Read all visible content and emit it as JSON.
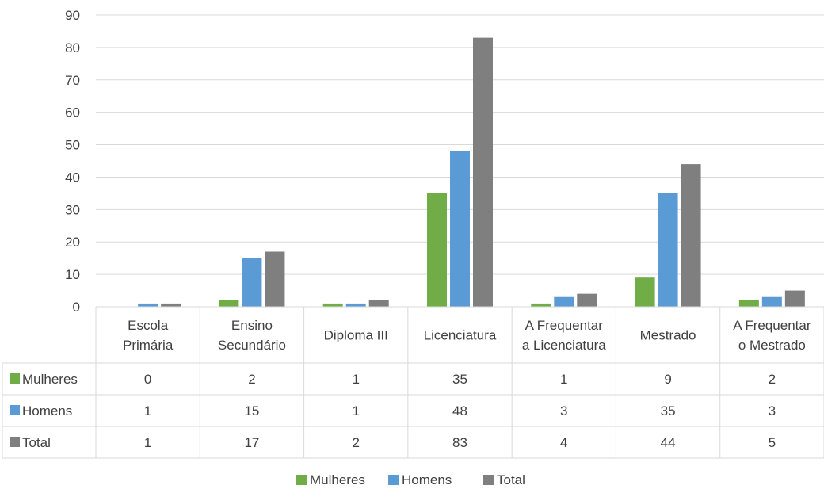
{
  "chart_data": {
    "type": "bar",
    "title": "",
    "xlabel": "",
    "ylabel": "",
    "ylim": [
      0,
      90
    ],
    "yticks": [
      0,
      10,
      20,
      30,
      40,
      50,
      60,
      70,
      80,
      90
    ],
    "grid": true,
    "legend_position": "bottom",
    "data_table": true,
    "categories": [
      [
        "Escola",
        "Primária"
      ],
      [
        "Ensino",
        "Secundário"
      ],
      [
        "Diploma III"
      ],
      [
        "Licenciatura"
      ],
      [
        "A Frequentar",
        "a Licenciatura"
      ],
      [
        "Mestrado"
      ],
      [
        "A Frequentar",
        "o Mestrado"
      ]
    ],
    "series": [
      {
        "name": "Mulheres",
        "color": "#70ad47",
        "values": [
          0,
          2,
          1,
          35,
          1,
          9,
          2
        ]
      },
      {
        "name": "Homens",
        "color": "#5b9bd5",
        "values": [
          1,
          15,
          1,
          48,
          3,
          35,
          3
        ]
      },
      {
        "name": "Total",
        "color": "#7f7f7f",
        "values": [
          1,
          17,
          2,
          83,
          4,
          44,
          5
        ]
      }
    ]
  }
}
